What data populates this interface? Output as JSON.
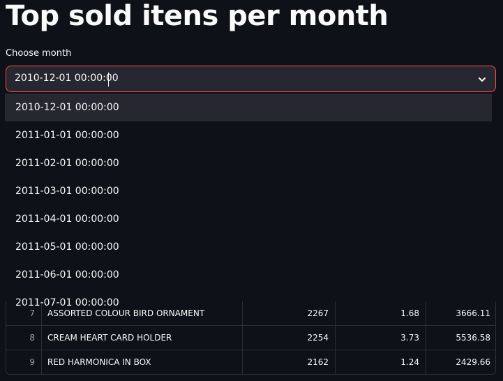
{
  "page": {
    "title": "Top sold itens per month"
  },
  "month_select": {
    "label": "Choose month",
    "value": "2010-12-01 00:00:00",
    "options": [
      "2010-12-01 00:00:00",
      "2011-01-01 00:00:00",
      "2011-02-01 00:00:00",
      "2011-03-01 00:00:00",
      "2011-04-01 00:00:00",
      "2011-05-01 00:00:00",
      "2011-06-01 00:00:00",
      "2011-07-01 00:00:00"
    ],
    "chevron_icon": "chevron-down-icon",
    "accent_color": "#ff4b4b"
  },
  "table": {
    "rows": [
      {
        "index": "7",
        "description": "ASSORTED COLOUR BIRD ORNAMENT",
        "quantity": "2267",
        "price": "1.68",
        "revenue": "3666.11"
      },
      {
        "index": "8",
        "description": "CREAM HEART CARD HOLDER",
        "quantity": "2254",
        "price": "3.73",
        "revenue": "5536.58"
      },
      {
        "index": "9",
        "description": "RED  HARMONICA IN BOX",
        "quantity": "2162",
        "price": "1.24",
        "revenue": "2429.66"
      }
    ]
  }
}
